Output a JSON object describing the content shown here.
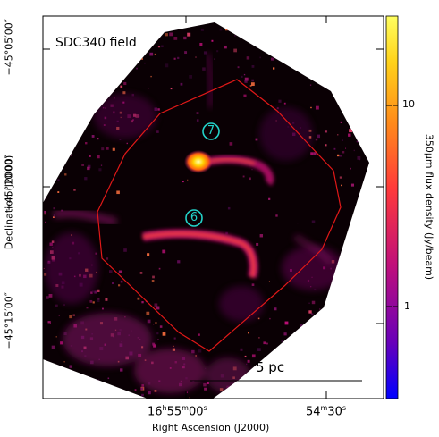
{
  "image": {
    "field_label": "SDC340 field",
    "x_axis": {
      "label": "Right Ascension (J2000)",
      "ticks": [
        {
          "h": "16",
          "h_unit": "h",
          "m": "55",
          "m_unit": "m",
          "s": "00",
          "s_unit": "s"
        },
        {
          "m": "54",
          "m_unit": "m",
          "s": "30",
          "s_unit": "s"
        }
      ]
    },
    "y_axis": {
      "label": "Declination (J2000)",
      "ticks": [
        "−45°05′00″",
        "−45°10′00″",
        "−45°15′00″"
      ]
    },
    "colorbar": {
      "label": "350μm flux density (Jy/beam)",
      "ticks": [
        "10",
        "1"
      ],
      "scale": "log",
      "colormap": [
        "#0000ff",
        "#6a00b8",
        "#c0107a",
        "#ff3a3a",
        "#ff8a1a",
        "#ffd21a",
        "#ffff60"
      ]
    },
    "markers": [
      {
        "label": "7",
        "color": "#23d1c8"
      },
      {
        "label": "6",
        "color": "#23d1c8"
      }
    ],
    "scalebar": {
      "label": "5 pc"
    },
    "colors": {
      "contour": "#e01818",
      "background_field": "#0a0004",
      "frame": "#000000"
    }
  }
}
